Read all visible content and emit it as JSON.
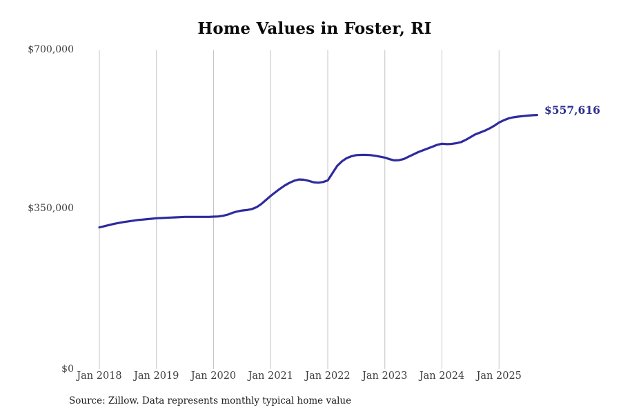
{
  "chart_data": {
    "type": "line",
    "title": "Home Values in Foster, RI",
    "source": "Source: Zillow. Data represents monthly typical home value",
    "end_label": "$557,616",
    "latest_value": 557616,
    "x_start_month": "Jan 2018",
    "x_end_month": "Sep 2025",
    "xlabel": "",
    "ylabel": "",
    "ylim": [
      0,
      700000
    ],
    "grid": "vertical-only",
    "legend": "none",
    "y_ticks": [
      {
        "label": "$700,000",
        "value": 700000
      },
      {
        "label": "$350,000",
        "value": 350000
      },
      {
        "label": "$0",
        "value": 0
      }
    ],
    "x_tick_labels": [
      "Jan 2018",
      "Jan 2019",
      "Jan 2020",
      "Jan 2021",
      "Jan 2022",
      "Jan 2023",
      "Jan 2024",
      "Jan 2025"
    ],
    "x_tick_month_indices": [
      0,
      12,
      24,
      36,
      48,
      60,
      72,
      84
    ],
    "colors": {
      "line": "#2e2b9e",
      "grid": "#c4c4c4",
      "end_label": "#2b2d8e",
      "axis_text": "#3d3d3d",
      "title": "#0a0a0a"
    },
    "values": [
      311000,
      313500,
      316000,
      318500,
      320500,
      322500,
      324000,
      325500,
      327000,
      328000,
      329000,
      330000,
      331000,
      331500,
      332000,
      332500,
      333000,
      333500,
      334000,
      334000,
      334000,
      334000,
      334000,
      334000,
      334500,
      335000,
      336500,
      339000,
      343000,
      346000,
      348000,
      349000,
      351000,
      355000,
      362000,
      371000,
      380000,
      388000,
      396000,
      403000,
      409000,
      413500,
      416000,
      415500,
      413000,
      410000,
      409000,
      410500,
      414000,
      430000,
      446000,
      456000,
      463000,
      467000,
      469500,
      470000,
      470000,
      469500,
      468000,
      466000,
      464000,
      460500,
      458000,
      458500,
      461000,
      466000,
      471000,
      476000,
      480000,
      484000,
      488000,
      492000,
      494500,
      493500,
      494000,
      495500,
      498000,
      503000,
      509000,
      515000,
      519000,
      523000,
      528000,
      534000,
      541000,
      546000,
      550000,
      552500,
      554000,
      555000,
      556000,
      557000,
      557616
    ]
  }
}
